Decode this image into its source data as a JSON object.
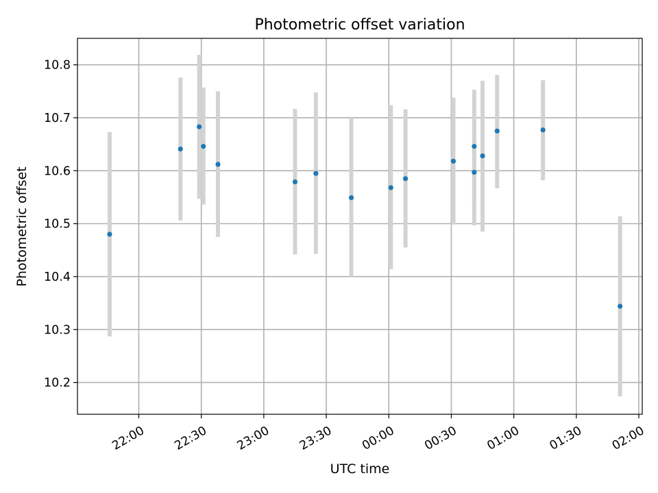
{
  "chart_data": {
    "type": "scatter",
    "title": "Photometric offset variation",
    "xlabel": "UTC time",
    "ylabel": "Photometric offset",
    "x_unit": "UTC time of day (hours past 21:00, relative offsets)",
    "xlim": [
      "21:30",
      "02:00"
    ],
    "ylim": [
      10.14,
      10.85
    ],
    "grid": true,
    "x_ticks": [
      "22:00",
      "22:30",
      "23:00",
      "23:30",
      "00:00",
      "00:30",
      "01:00",
      "01:30",
      "02:00"
    ],
    "y_ticks": [
      "10.2",
      "10.3",
      "10.4",
      "10.5",
      "10.6",
      "10.7",
      "10.8"
    ],
    "colors": {
      "points": "#1f77b4",
      "error_bars": "#d3d3d3",
      "grid": "#b0b0b0"
    },
    "series": [
      {
        "points": [
          {
            "x": "21:46",
            "y": 10.48,
            "err_low": 10.287,
            "err_high": 10.673
          },
          {
            "x": "22:20",
            "y": 10.641,
            "err_low": 10.506,
            "err_high": 10.776
          },
          {
            "x": "22:29",
            "y": 10.683,
            "err_low": 10.547,
            "err_high": 10.819
          },
          {
            "x": "22:31",
            "y": 10.646,
            "err_low": 10.536,
            "err_high": 10.757
          },
          {
            "x": "22:38",
            "y": 10.612,
            "err_low": 10.475,
            "err_high": 10.75
          },
          {
            "x": "23:15",
            "y": 10.579,
            "err_low": 10.442,
            "err_high": 10.717
          },
          {
            "x": "23:25",
            "y": 10.595,
            "err_low": 10.443,
            "err_high": 10.748
          },
          {
            "x": "23:42",
            "y": 10.549,
            "err_low": 10.4,
            "err_high": 10.7
          },
          {
            "x": "00:01",
            "y": 10.568,
            "err_low": 10.414,
            "err_high": 10.724
          },
          {
            "x": "00:08",
            "y": 10.585,
            "err_low": 10.455,
            "err_high": 10.716
          },
          {
            "x": "00:31",
            "y": 10.618,
            "err_low": 10.498,
            "err_high": 10.738
          },
          {
            "x": "00:41",
            "y": 10.597,
            "err_low": 10.497,
            "err_high": 10.697
          },
          {
            "x": "00:41",
            "y": 10.646,
            "err_low": 10.542,
            "err_high": 10.753
          },
          {
            "x": "00:45",
            "y": 10.628,
            "err_low": 10.485,
            "err_high": 10.77
          },
          {
            "x": "00:52",
            "y": 10.675,
            "err_low": 10.567,
            "err_high": 10.781
          },
          {
            "x": "01:14",
            "y": 10.677,
            "err_low": 10.582,
            "err_high": 10.771
          },
          {
            "x": "01:51",
            "y": 10.344,
            "err_low": 10.174,
            "err_high": 10.514
          }
        ]
      }
    ]
  }
}
